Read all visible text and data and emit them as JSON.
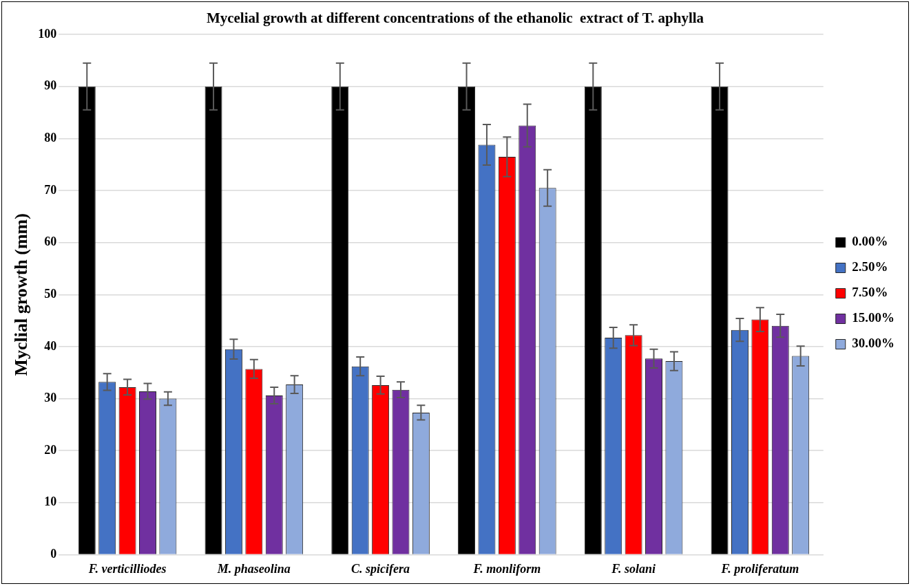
{
  "chart_data": {
    "type": "bar",
    "title": "Mycelial growth at different concentrations of the ethanolic  extract of T. aphylla",
    "ylabel": "Myclial growth (mm)",
    "categories": [
      "F. verticilliodes",
      "M. phaseolina",
      "C. spicifera",
      "F. monliform",
      "F. solani",
      "F. proliferatum"
    ],
    "series": [
      {
        "name": "0.00%",
        "color": "#000000",
        "values": [
          90,
          90,
          90,
          90,
          90,
          90
        ],
        "errors": [
          4.5,
          4.5,
          4.5,
          4.5,
          4.5,
          4.5
        ]
      },
      {
        "name": "2.50%",
        "color": "#4472c4",
        "values": [
          33.2,
          39.5,
          36.2,
          78.8,
          41.7,
          43.2
        ],
        "errors": [
          1.6,
          1.9,
          1.8,
          3.9,
          2.0,
          2.2
        ]
      },
      {
        "name": "7.50%",
        "color": "#ff0000",
        "values": [
          32.2,
          35.7,
          32.6,
          76.5,
          42.2,
          45.2
        ],
        "errors": [
          1.5,
          1.8,
          1.7,
          3.8,
          2.0,
          2.3
        ]
      },
      {
        "name": "15.00%",
        "color": "#7030a0",
        "values": [
          31.4,
          30.6,
          31.7,
          82.5,
          37.7,
          44.0
        ],
        "errors": [
          1.5,
          1.6,
          1.5,
          4.1,
          1.8,
          2.2
        ]
      },
      {
        "name": "30.00%",
        "color": "#8faadc",
        "values": [
          30.0,
          32.7,
          27.3,
          70.5,
          37.2,
          38.2
        ],
        "errors": [
          1.3,
          1.7,
          1.4,
          3.5,
          1.8,
          1.9
        ]
      }
    ],
    "ylim": [
      0,
      100
    ],
    "yticks": [
      0,
      10,
      20,
      30,
      40,
      50,
      60,
      70,
      80,
      90,
      100
    ],
    "grid": "y",
    "legend": "right"
  }
}
